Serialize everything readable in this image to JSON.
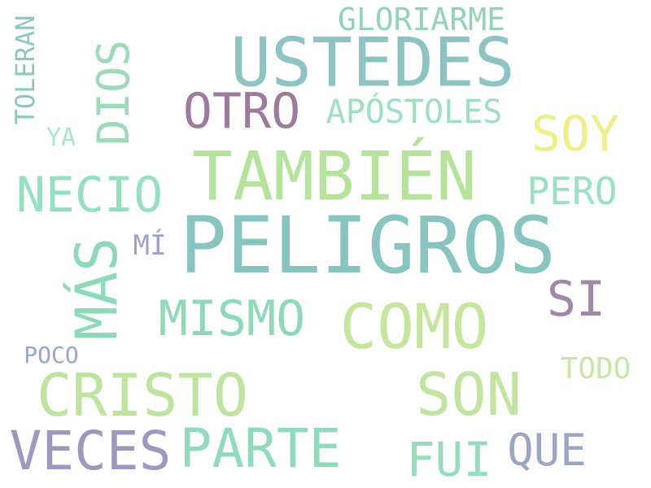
{
  "words": [
    {
      "key": "peligros",
      "text": "PELIGROS",
      "color": "#88c5c0",
      "vertical": false
    },
    {
      "key": "ustedes",
      "text": "USTEDES",
      "color": "#8ec3c4",
      "vertical": false
    },
    {
      "key": "tambien",
      "text": "TAMBIÉN",
      "color": "#b6e39c",
      "vertical": false
    },
    {
      "key": "como",
      "text": "COMO",
      "color": "#c6e6a0",
      "vertical": false
    },
    {
      "key": "cristo",
      "text": "CRISTO",
      "color": "#bfe49f",
      "vertical": false
    },
    {
      "key": "son",
      "text": "SON",
      "color": "#c2e3a2",
      "vertical": false
    },
    {
      "key": "veces",
      "text": "VECES",
      "color": "#9e98c1",
      "vertical": false
    },
    {
      "key": "parte",
      "text": "PARTE",
      "color": "#90dbbb",
      "vertical": false
    },
    {
      "key": "mas",
      "text": "MÁS",
      "color": "#8edab8",
      "vertical": true
    },
    {
      "key": "necio",
      "text": "NECIO",
      "color": "#96dfc0",
      "vertical": false
    },
    {
      "key": "mismo",
      "text": "MISMO",
      "color": "#8fd9b7",
      "vertical": false
    },
    {
      "key": "otro",
      "text": "OTRO",
      "color": "#a0799f",
      "vertical": false
    },
    {
      "key": "soy",
      "text": "SOY",
      "color": "#f1ee8a",
      "vertical": false
    },
    {
      "key": "si",
      "text": "SI",
      "color": "#a188a8",
      "vertical": false
    },
    {
      "key": "fui",
      "text": "FUI",
      "color": "#98dcbe",
      "vertical": false
    },
    {
      "key": "que",
      "text": "QUE",
      "color": "#9ba6c3",
      "vertical": false
    },
    {
      "key": "dios",
      "text": "DIOS",
      "color": "#9edab8",
      "vertical": true
    },
    {
      "key": "pero",
      "text": "PERO",
      "color": "#9ce0c2",
      "vertical": false
    },
    {
      "key": "apostoles",
      "text": "APÓSTOLES",
      "color": "#9ddfc0",
      "vertical": false
    },
    {
      "key": "gloriarme",
      "text": "GLORIARME",
      "color": "#94d3b9",
      "vertical": false
    },
    {
      "key": "todo",
      "text": "TODO",
      "color": "#c6e8a7",
      "vertical": false
    },
    {
      "key": "toleran",
      "text": "TOLERAN",
      "color": "#8cc8c0",
      "vertical": true
    },
    {
      "key": "mi",
      "text": "MÍ",
      "color": "#9ea3c3",
      "vertical": false
    },
    {
      "key": "ya",
      "text": "YA",
      "color": "#a9e5c8",
      "vertical": false
    },
    {
      "key": "poco",
      "text": "POCO",
      "color": "#98a7c6",
      "vertical": false
    }
  ]
}
